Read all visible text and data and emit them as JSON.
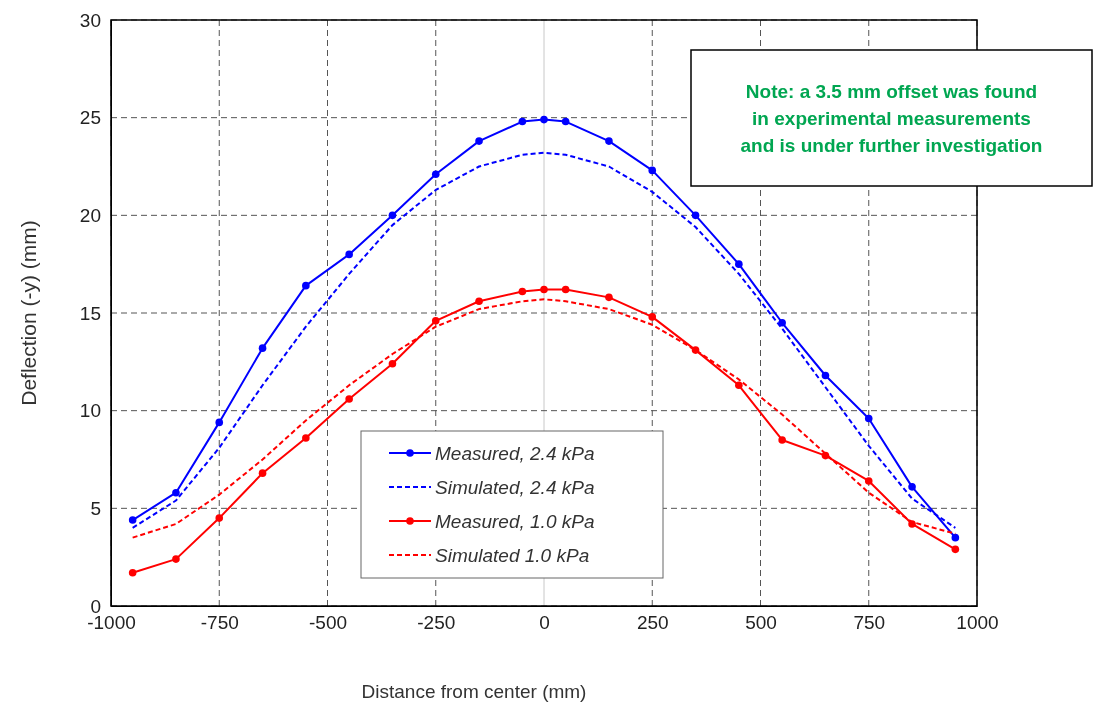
{
  "chart_data": {
    "type": "line",
    "xlabel": "Distance from center (mm)",
    "ylabel": "Deflection (-y) (mm)",
    "x": [
      -950,
      -850,
      -750,
      -650,
      -550,
      -450,
      -350,
      -250,
      -150,
      -50,
      0,
      50,
      150,
      250,
      350,
      450,
      550,
      650,
      750,
      850,
      950
    ],
    "series": [
      {
        "name": "Measured, 2.4 kPa",
        "color": "#0000ff",
        "marker": "circle",
        "line_style": "solid",
        "values": [
          4.4,
          5.8,
          9.4,
          13.2,
          16.4,
          18.0,
          20.0,
          22.1,
          23.8,
          24.8,
          24.9,
          24.8,
          23.8,
          22.3,
          20.0,
          17.5,
          14.5,
          11.8,
          9.6,
          6.1,
          3.5
        ]
      },
      {
        "name": "Simulated, 2.4 kPa",
        "color": "#0000ff",
        "marker": "none",
        "line_style": "dashed",
        "values": [
          4.0,
          5.4,
          8.1,
          11.3,
          14.3,
          17.0,
          19.5,
          21.3,
          22.5,
          23.1,
          23.2,
          23.1,
          22.5,
          21.2,
          19.4,
          17.0,
          14.2,
          11.2,
          8.2,
          5.5,
          4.0
        ]
      },
      {
        "name": "Measured, 1.0 kPa",
        "color": "#ff0000",
        "marker": "circle",
        "line_style": "solid",
        "values": [
          1.7,
          2.4,
          4.5,
          6.8,
          8.6,
          10.6,
          12.4,
          14.6,
          15.6,
          16.1,
          16.2,
          16.2,
          15.8,
          14.8,
          13.1,
          11.3,
          8.5,
          7.7,
          6.4,
          4.2,
          2.9
        ]
      },
      {
        "name": "Simulated 1.0 kPa",
        "color": "#ff0000",
        "marker": "none",
        "line_style": "dashed",
        "values": [
          3.5,
          4.2,
          5.7,
          7.5,
          9.5,
          11.3,
          12.9,
          14.3,
          15.2,
          15.6,
          15.7,
          15.6,
          15.2,
          14.4,
          13.1,
          11.6,
          9.8,
          7.8,
          5.8,
          4.3,
          3.7
        ]
      }
    ],
    "xlim": [
      -1000,
      1000
    ],
    "xticks": [
      -1000,
      -750,
      -500,
      -250,
      0,
      250,
      500,
      750,
      1000
    ],
    "ylim": [
      0,
      30
    ],
    "yticks": [
      0,
      5,
      10,
      15,
      20,
      25,
      30
    ],
    "grid": true,
    "legend": "bottom",
    "annotations": [
      "Note: a 3.5 mm offset was found in experimental measurements and is under further investigation"
    ]
  }
}
